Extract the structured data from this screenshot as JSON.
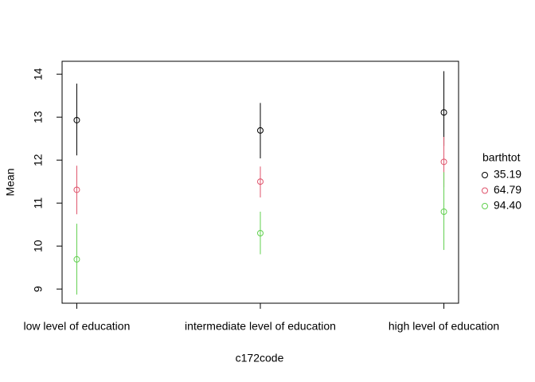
{
  "chart_data": {
    "type": "errorbar",
    "x_label": "c172code",
    "y_label": "Mean",
    "categories": [
      "low level of education",
      "intermediate level of education",
      "high level of education"
    ],
    "ylim": [
      8.67,
      14.3
    ],
    "yticks": [
      9,
      10,
      11,
      12,
      13,
      14
    ],
    "legend_title": "barthtot",
    "legend_position": "right",
    "series": [
      {
        "name": "35.19",
        "color": "#000000",
        "values": [
          12.93,
          12.69,
          13.11
        ],
        "lower": [
          12.11,
          12.04,
          12.33
        ],
        "upper": [
          13.78,
          13.33,
          14.07
        ]
      },
      {
        "name": "64.79",
        "color": "#DF536B",
        "values": [
          11.31,
          11.5,
          11.96
        ],
        "lower": [
          10.74,
          11.13,
          11.37
        ],
        "upper": [
          11.87,
          11.85,
          12.54
        ]
      },
      {
        "name": "94.40",
        "color": "#61D04F",
        "values": [
          9.69,
          10.3,
          10.8
        ],
        "lower": [
          8.87,
          9.81,
          9.91
        ],
        "upper": [
          10.52,
          10.8,
          11.72
        ]
      }
    ]
  }
}
